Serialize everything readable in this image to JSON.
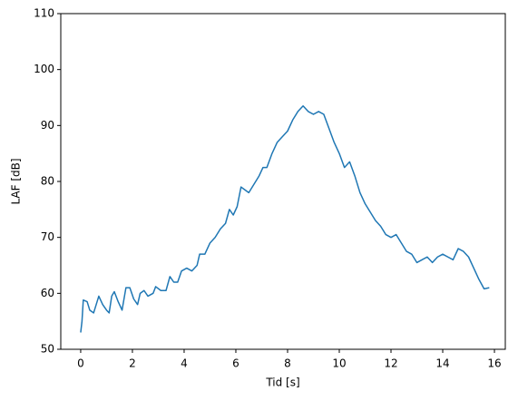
{
  "chart_data": {
    "type": "line",
    "xlabel": "Tid [s]",
    "ylabel": "LAF [dB]",
    "xlim": [
      -0.77,
      16.42
    ],
    "ylim": [
      50,
      110
    ],
    "xticks": [
      0,
      2,
      4,
      6,
      8,
      10,
      12,
      14,
      16
    ],
    "yticks": [
      50,
      60,
      70,
      80,
      90,
      100,
      110
    ],
    "series": [
      {
        "color": "#1f77b4",
        "x": [
          0,
          0.05,
          0.1,
          0.25,
          0.35,
          0.5,
          0.6,
          0.7,
          0.85,
          1.0,
          1.1,
          1.2,
          1.3,
          1.45,
          1.6,
          1.75,
          1.9,
          2.05,
          2.2,
          2.3,
          2.45,
          2.6,
          2.8,
          2.9,
          3.1,
          3.3,
          3.45,
          3.6,
          3.75,
          3.9,
          4.1,
          4.3,
          4.5,
          4.6,
          4.8,
          5.0,
          5.2,
          5.4,
          5.6,
          5.75,
          5.9,
          6.05,
          6.2,
          6.35,
          6.5,
          6.7,
          6.9,
          7.05,
          7.2,
          7.4,
          7.6,
          7.8,
          8.0,
          8.2,
          8.4,
          8.6,
          8.8,
          9.0,
          9.2,
          9.4,
          9.6,
          9.8,
          10.0,
          10.2,
          10.4,
          10.6,
          10.8,
          11.0,
          11.2,
          11.4,
          11.6,
          11.8,
          12.0,
          12.2,
          12.4,
          12.6,
          12.8,
          13.0,
          13.2,
          13.4,
          13.6,
          13.8,
          14.0,
          14.2,
          14.4,
          14.6,
          14.8,
          15.0,
          15.2,
          15.4,
          15.6,
          15.8
        ],
        "values": [
          53,
          55,
          58.8,
          58.5,
          57,
          56.5,
          58,
          59.5,
          58,
          57,
          56.5,
          59.5,
          60.3,
          58.5,
          57,
          61,
          61,
          59,
          58,
          60,
          60.5,
          59.5,
          60,
          61.2,
          60.5,
          60.5,
          63,
          62,
          62,
          64,
          64.5,
          64,
          65,
          67,
          67,
          69,
          70,
          71.5,
          72.5,
          75,
          74,
          75.5,
          79,
          78.5,
          78,
          79.5,
          81,
          82.5,
          82.5,
          85,
          87,
          88,
          89,
          91,
          92.5,
          93.5,
          92.5,
          92,
          92.5,
          92,
          89.5,
          87,
          85,
          82.5,
          83.5,
          81,
          78,
          76,
          74.5,
          73,
          72,
          70.5,
          70,
          70.5,
          69,
          67.5,
          67,
          65.5,
          66,
          66.5,
          65.5,
          66.5,
          67,
          66.5,
          66,
          68,
          67.5,
          66.5,
          64.5,
          62.5,
          60.8,
          61
        ]
      }
    ]
  }
}
